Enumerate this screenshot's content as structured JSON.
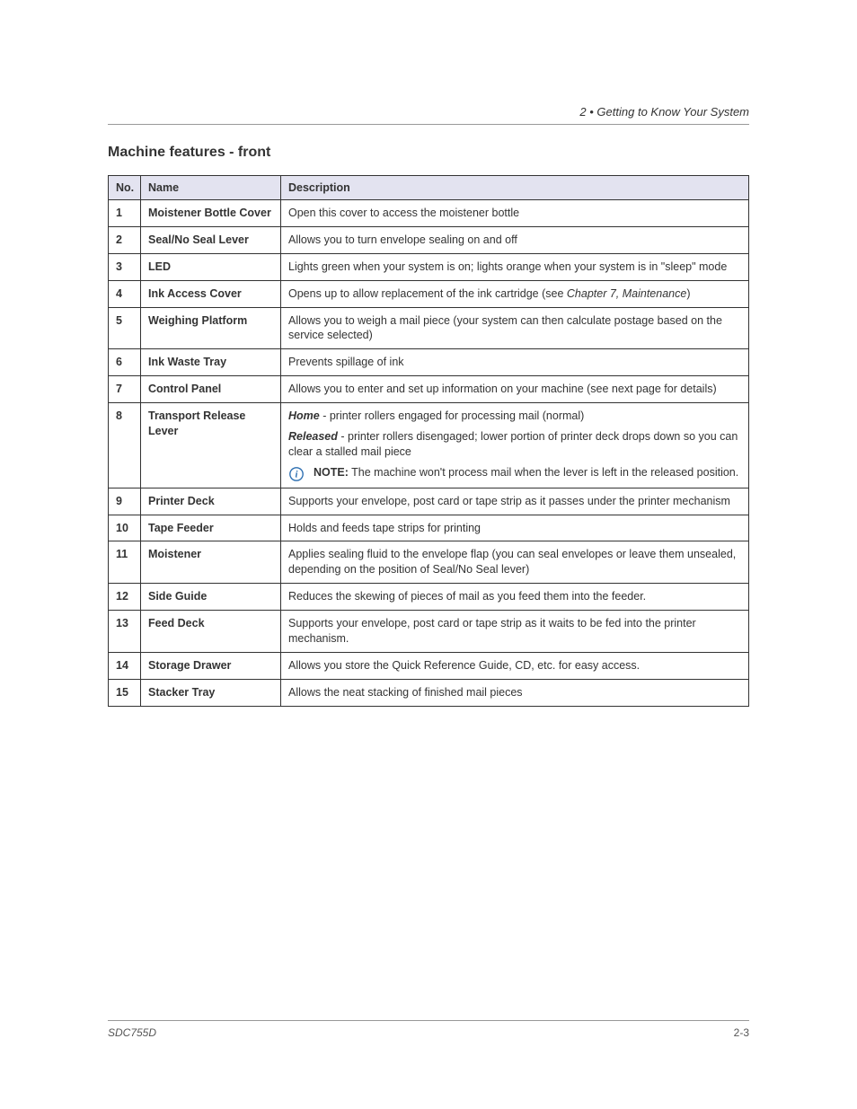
{
  "theme": {
    "header_bg": "#e3e3f0",
    "border_color": "#333333",
    "text_color": "#333333",
    "rule_color": "#999999",
    "note_icon_stroke": "#2a6db0"
  },
  "header": {
    "chapter_label": "2 • Getting to Know Your System",
    "section_title": "Machine features - front"
  },
  "table": {
    "headers": {
      "no": "No.",
      "name": "Name",
      "desc": "Description"
    },
    "rows": [
      {
        "no": "1",
        "name": "Moistener Bottle Cover",
        "segments": [
          {
            "text": "Open this cover to access the moistener bottle"
          }
        ]
      },
      {
        "no": "2",
        "name": "Seal/No Seal Lever",
        "segments": [
          {
            "text": "Allows you to turn envelope sealing on and off"
          }
        ]
      },
      {
        "no": "3",
        "name": "LED",
        "segments": [
          {
            "text": "Lights green when your system is on; lights orange when your system is in \"sleep\" mode"
          }
        ]
      },
      {
        "no": "4",
        "name": "Ink Access Cover",
        "segments": [
          {
            "text": "Opens up to allow replacement of the ink cartridge (see "
          },
          {
            "text": "Chapter 7, Maintenance",
            "italic": true
          },
          {
            "text": ")"
          }
        ]
      },
      {
        "no": "5",
        "name": "Weighing Platform",
        "segments": [
          {
            "text": "Allows you to weigh a mail piece (your system can then calculate postage based on the service selected)"
          }
        ]
      },
      {
        "no": "6",
        "name": "Ink Waste Tray",
        "segments": [
          {
            "text": "Prevents spillage of ink"
          }
        ]
      },
      {
        "no": "7",
        "name": "Control Panel",
        "segments": [
          {
            "text": "Allows you to enter and set up information on your machine (see next page for details)"
          }
        ]
      },
      {
        "no": "8",
        "name": "Transport Release Lever",
        "blocks": [
          {
            "segments": [
              {
                "text": "Home",
                "bold": true,
                "italic": true
              },
              {
                "text": " - printer rollers engaged for processing mail (normal)"
              }
            ]
          },
          {
            "segments": [
              {
                "text": "Released",
                "bold": true,
                "italic": true
              },
              {
                "text": " - printer rollers disengaged; lower portion of printer deck drops down so you can clear a stalled mail piece"
              }
            ]
          },
          {
            "note": true,
            "segments": [
              {
                "text": "NOTE:",
                "bold": true
              },
              {
                "text": " The machine won't process mail when the lever is left in the released position."
              }
            ]
          }
        ]
      },
      {
        "no": "9",
        "name": "Printer Deck",
        "segments": [
          {
            "text": "Supports your envelope, post card or tape strip as it passes under the printer mechanism"
          }
        ]
      },
      {
        "no": "10",
        "name": "Tape Feeder",
        "segments": [
          {
            "text": "Holds and feeds tape strips for printing"
          }
        ]
      },
      {
        "no": "11",
        "name": "Moistener",
        "segments": [
          {
            "text": "Applies sealing fluid to the envelope flap (you can seal envelopes or leave them unsealed, depending on the position of Seal/No Seal lever)"
          }
        ]
      },
      {
        "no": "12",
        "name": "Side Guide",
        "segments": [
          {
            "text": "Reduces the skewing of pieces of mail as you feed them into the feeder."
          }
        ]
      },
      {
        "no": "13",
        "name": "Feed Deck",
        "segments": [
          {
            "text": "Supports your envelope, post card or tape strip as it waits to be fed into the printer mechanism."
          }
        ]
      },
      {
        "no": "14",
        "name": "Storage Drawer",
        "segments": [
          {
            "text": "Allows you store the Quick Reference Guide, CD, etc. for easy access."
          }
        ]
      },
      {
        "no": "15",
        "name": "Stacker Tray",
        "segments": [
          {
            "text": "Allows the neat stacking of finished mail pieces"
          }
        ]
      }
    ]
  },
  "footer": {
    "left": "SDC755D",
    "right": "2-3"
  }
}
